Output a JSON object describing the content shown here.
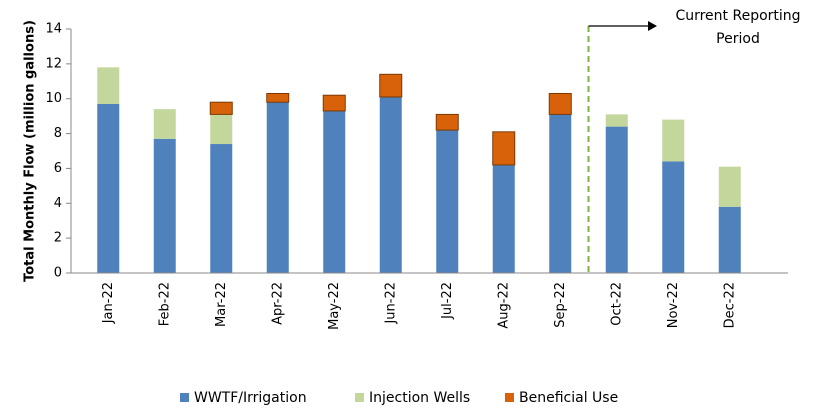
{
  "chart_data": {
    "type": "stacked_bar",
    "y_label": "Total Monthly Flow (million gallons)",
    "categories": [
      "Jan-22",
      "Feb-22",
      "Mar-22",
      "Apr-22",
      "May-22",
      "Jun-22",
      "Jul-22",
      "Aug-22",
      "Sep-22",
      "Oct-22",
      "Nov-22",
      "Dec-22"
    ],
    "series": [
      {
        "name": "WWTF/Irrigation",
        "color": "#4f81bd",
        "values": [
          9.7,
          7.7,
          7.4,
          9.8,
          9.3,
          10.1,
          8.2,
          6.2,
          9.1,
          8.4,
          6.4,
          3.8
        ]
      },
      {
        "name": "Injection Wells",
        "color": "#c3d69b",
        "values": [
          2.1,
          1.7,
          1.7,
          0,
          0,
          0,
          0,
          0,
          0,
          0.7,
          2.4,
          2.3
        ]
      },
      {
        "name": "Beneficial Use",
        "color": "#d8620a",
        "values": [
          0,
          0,
          0.7,
          0.5,
          0.9,
          1.3,
          0.9,
          1.9,
          1.2,
          0,
          0,
          0
        ]
      }
    ],
    "ylim": [
      0,
      14
    ],
    "yticks": [
      0,
      2,
      4,
      6,
      8,
      10,
      12,
      14
    ],
    "annotation_lines": [
      "Current Reporting",
      "Period"
    ],
    "legend": "bottom"
  }
}
